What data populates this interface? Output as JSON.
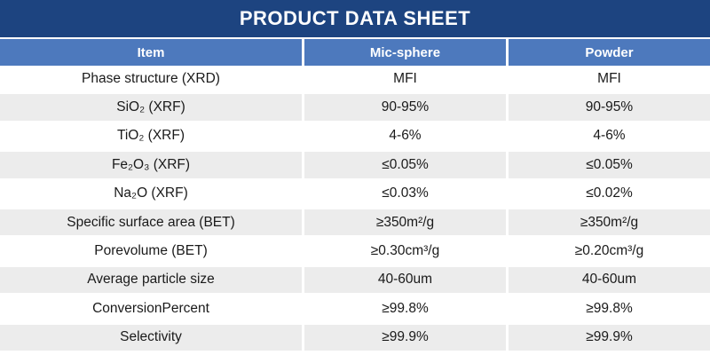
{
  "title": "PRODUCT DATA SHEET",
  "colors": {
    "title_bar": "#1d4480",
    "header_row": "#4d79bd",
    "stripe": "#ececec",
    "header_text": "#ffffff",
    "body_text": "#1a1a1a"
  },
  "table": {
    "columns": [
      "Item",
      "Mic-sphere",
      "Powder"
    ],
    "rows": [
      {
        "item": "Phase structure (XRD)",
        "mic_sphere": "MFI",
        "powder": "MFI"
      },
      {
        "item": "SiO₂ (XRF)",
        "mic_sphere": "90-95%",
        "powder": "90-95%"
      },
      {
        "item": "TiO₂ (XRF)",
        "mic_sphere": "4-6%",
        "powder": "4-6%"
      },
      {
        "item": "Fe₂O₃ (XRF)",
        "mic_sphere": "≤0.05%",
        "powder": "≤0.05%"
      },
      {
        "item": "Na₂O (XRF)",
        "mic_sphere": "≤0.03%",
        "powder": "≤0.02%"
      },
      {
        "item": "Specific surface area (BET)",
        "mic_sphere": "≥350m²/g",
        "powder": "≥350m²/g"
      },
      {
        "item": "Porevolume (BET)",
        "mic_sphere": "≥0.30cm³/g",
        "powder": "≥0.20cm³/g"
      },
      {
        "item": "Average particle size",
        "mic_sphere": "40-60um",
        "powder": "40-60um"
      },
      {
        "item": "ConversionPercent",
        "mic_sphere": "≥99.8%",
        "powder": "≥99.8%"
      },
      {
        "item": "Selectivity",
        "mic_sphere": "≥99.9%",
        "powder": "≥99.9%"
      }
    ]
  }
}
